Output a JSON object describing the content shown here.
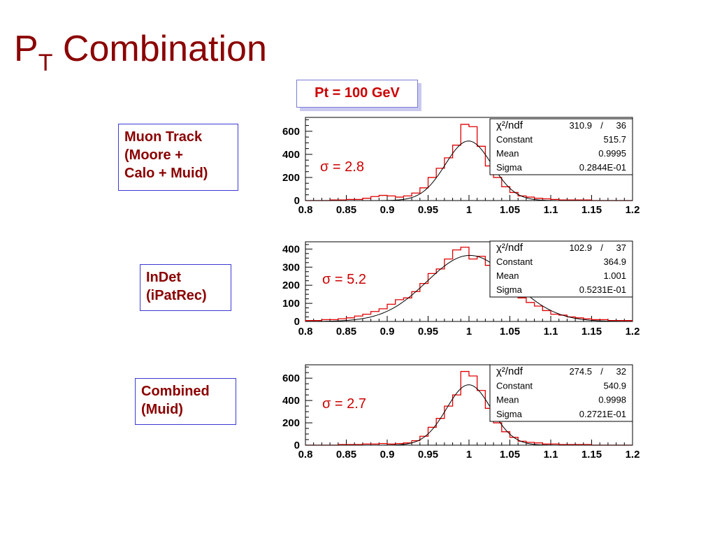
{
  "slide": {
    "title_main": "P",
    "title_sub": "T",
    "title_rest": " Combination",
    "banner": "Pt = 100 GeV"
  },
  "labels": [
    [
      "Muon Track",
      "(Moore +",
      "Calo + Muid)"
    ],
    [
      "InDet",
      "(iPatRec)"
    ],
    [
      "Combined",
      "(Muid)"
    ]
  ],
  "colors": {
    "title": "#8b0000",
    "histogram": "#e00000",
    "fit": "#000000",
    "banner_text": "#cc0000",
    "label_border": "#3a3ad6"
  },
  "chart_data": [
    {
      "type": "line",
      "x_tick_labels": [
        "0.8",
        "0.85",
        "0.9",
        "0.95",
        "1",
        "1.05",
        "1.1",
        "1.15",
        "1.2"
      ],
      "y_tick_labels": [
        "0",
        "200",
        "400",
        "600"
      ],
      "xlim": [
        0.8,
        1.2
      ],
      "ylim": [
        0,
        720
      ],
      "sigma_label": "σ = 2.8",
      "stats": [
        [
          "χ²/ndf",
          "310.9",
          "/",
          "36"
        ],
        [
          "Constant",
          "515.7"
        ],
        [
          "Mean",
          "0.9995"
        ],
        [
          "Sigma",
          "0.2844E-01"
        ]
      ],
      "fit": {
        "constant": 515.7,
        "mean": 0.9995,
        "sigma": 0.02844
      },
      "histogram": {
        "bin_width": 0.01,
        "x": [
          0.805,
          0.815,
          0.825,
          0.835,
          0.845,
          0.855,
          0.865,
          0.875,
          0.885,
          0.895,
          0.905,
          0.915,
          0.925,
          0.935,
          0.945,
          0.955,
          0.965,
          0.975,
          0.985,
          0.995,
          1.005,
          1.015,
          1.025,
          1.035,
          1.045,
          1.055,
          1.065,
          1.075,
          1.085,
          1.095,
          1.105,
          1.115,
          1.125,
          1.135,
          1.145,
          1.155,
          1.165,
          1.175,
          1.185,
          1.195
        ],
        "values": [
          0,
          0,
          0,
          5,
          5,
          10,
          10,
          20,
          35,
          45,
          40,
          30,
          40,
          65,
          110,
          200,
          280,
          370,
          480,
          660,
          640,
          470,
          300,
          200,
          120,
          70,
          40,
          30,
          20,
          15,
          10,
          5,
          5,
          5,
          5,
          0,
          0,
          0,
          0,
          0
        ]
      }
    },
    {
      "type": "line",
      "x_tick_labels": [
        "0.8",
        "0.85",
        "0.9",
        "0.95",
        "1",
        "1.05",
        "1.1",
        "1.15",
        "1.2"
      ],
      "y_tick_labels": [
        "0",
        "100",
        "200",
        "300",
        "400"
      ],
      "xlim": [
        0.8,
        1.2
      ],
      "ylim": [
        0,
        440
      ],
      "sigma_label": "σ = 5.2",
      "stats": [
        [
          "χ²/ndf",
          "102.9",
          "/",
          "37"
        ],
        [
          "Constant",
          "364.9"
        ],
        [
          "Mean",
          "1.001"
        ],
        [
          "Sigma",
          "0.5231E-01"
        ]
      ],
      "fit": {
        "constant": 364.9,
        "mean": 1.001,
        "sigma": 0.05231
      },
      "histogram": {
        "bin_width": 0.01,
        "x": [
          0.805,
          0.815,
          0.825,
          0.835,
          0.845,
          0.855,
          0.865,
          0.875,
          0.885,
          0.895,
          0.905,
          0.915,
          0.925,
          0.935,
          0.945,
          0.955,
          0.965,
          0.975,
          0.985,
          0.995,
          1.005,
          1.015,
          1.025,
          1.035,
          1.045,
          1.055,
          1.065,
          1.075,
          1.085,
          1.095,
          1.105,
          1.115,
          1.125,
          1.135,
          1.145,
          1.155,
          1.165,
          1.175,
          1.185,
          1.195
        ],
        "values": [
          5,
          5,
          10,
          10,
          15,
          20,
          30,
          40,
          55,
          70,
          95,
          120,
          130,
          165,
          210,
          265,
          290,
          345,
          395,
          410,
          345,
          360,
          310,
          250,
          210,
          165,
          130,
          105,
          85,
          60,
          40,
          35,
          25,
          20,
          15,
          10,
          10,
          5,
          5,
          5
        ]
      }
    },
    {
      "type": "line",
      "x_tick_labels": [
        "0.8",
        "0.85",
        "0.9",
        "0.95",
        "1",
        "1.05",
        "1.1",
        "1.15",
        "1.2"
      ],
      "y_tick_labels": [
        "0",
        "200",
        "400",
        "600"
      ],
      "xlim": [
        0.8,
        1.2
      ],
      "ylim": [
        0,
        720
      ],
      "sigma_label": "σ = 2.7",
      "stats": [
        [
          "χ²/ndf",
          "274.5",
          "/",
          "32"
        ],
        [
          "Constant",
          "540.9"
        ],
        [
          "Mean",
          "0.9998"
        ],
        [
          "Sigma",
          "0.2721E-01"
        ]
      ],
      "fit": {
        "constant": 540.9,
        "mean": 0.9998,
        "sigma": 0.02721
      },
      "histogram": {
        "bin_width": 0.01,
        "x": [
          0.805,
          0.815,
          0.825,
          0.835,
          0.845,
          0.855,
          0.865,
          0.875,
          0.885,
          0.895,
          0.905,
          0.915,
          0.925,
          0.935,
          0.945,
          0.955,
          0.965,
          0.975,
          0.985,
          0.995,
          1.005,
          1.015,
          1.025,
          1.035,
          1.045,
          1.055,
          1.065,
          1.075,
          1.085,
          1.095,
          1.105,
          1.115,
          1.125,
          1.135,
          1.145,
          1.155,
          1.165,
          1.175,
          1.185,
          1.195
        ],
        "values": [
          0,
          0,
          0,
          0,
          5,
          5,
          5,
          10,
          10,
          15,
          10,
          15,
          20,
          40,
          80,
          160,
          240,
          350,
          450,
          660,
          620,
          490,
          330,
          200,
          120,
          70,
          35,
          25,
          20,
          10,
          10,
          5,
          5,
          5,
          5,
          0,
          0,
          0,
          0,
          0
        ]
      }
    }
  ]
}
